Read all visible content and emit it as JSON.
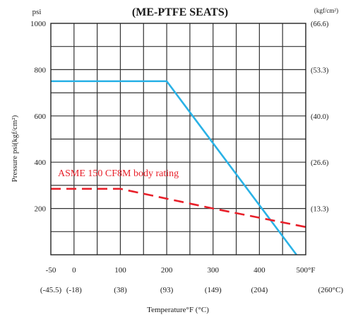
{
  "chart_data": {
    "type": "line",
    "title": "(ME-PTFE  SEATS)",
    "left_unit": "psi",
    "right_unit": "(kgf/cm²)",
    "ylabel": "Pressure  psi(kgf/cm²)",
    "xlabel": "Temperature°F (°C)",
    "xlim": [
      -50,
      500
    ],
    "ylim": [
      0,
      1000
    ],
    "x_ticks": [
      "-50",
      "0",
      "100",
      "200",
      "300",
      "400",
      "500°F"
    ],
    "x_ticks_c": [
      "(-45.5)",
      "(-18)",
      "(38)",
      "(93)",
      "(149)",
      "(204)",
      "(260°C)"
    ],
    "y_ticks": [
      "200",
      "400",
      "600",
      "800",
      "1000"
    ],
    "y_ticks_right": [
      "(13.3)",
      "(26.6)",
      "(40.0)",
      "(53.3)",
      "(66.6)"
    ],
    "grid": true,
    "annotation": "ASME 150 CF8M body rating",
    "series": [
      {
        "color": "#2ab2e6",
        "style": "solid",
        "x": [
          -50,
          200,
          480
        ],
        "y": [
          750,
          750,
          0
        ]
      },
      {
        "color": "#e8202a",
        "style": "dashed",
        "x": [
          -50,
          100,
          300,
          500
        ],
        "y": [
          285,
          285,
          200,
          120
        ]
      }
    ]
  }
}
